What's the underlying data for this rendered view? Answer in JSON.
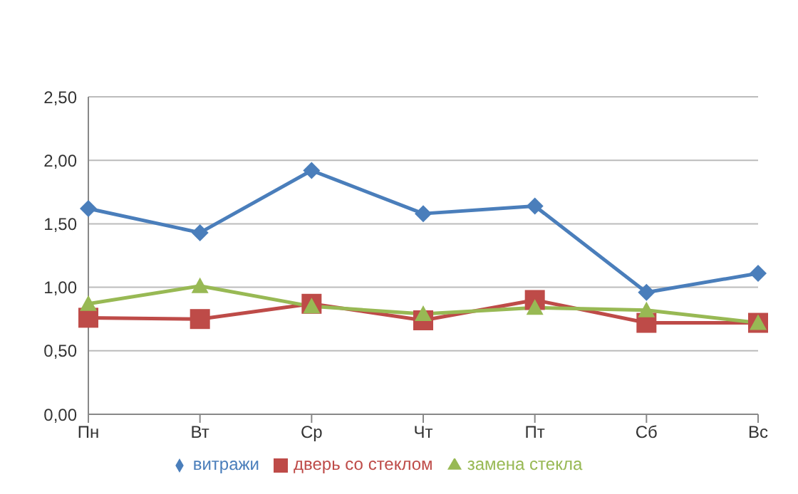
{
  "chart_data": {
    "type": "line",
    "categories": [
      "Пн",
      "Вт",
      "Ср",
      "Чт",
      "Пт",
      "Сб",
      "Вс"
    ],
    "series": [
      {
        "name": "витражи",
        "color": "#4a7ebb",
        "marker": "diamond",
        "values": [
          1.62,
          1.43,
          1.92,
          1.58,
          1.64,
          0.96,
          1.11
        ]
      },
      {
        "name": "дверь со стеклом",
        "color": "#be4b48",
        "marker": "square",
        "values": [
          0.76,
          0.75,
          0.87,
          0.74,
          0.9,
          0.72,
          0.72
        ]
      },
      {
        "name": "замена стекла",
        "color": "#98b954",
        "marker": "triangle",
        "values": [
          0.87,
          1.01,
          0.85,
          0.79,
          0.84,
          0.82,
          0.72
        ]
      }
    ],
    "ylim": [
      0,
      2.5
    ],
    "yticks": [
      {
        "value": 0,
        "label": "0,00"
      },
      {
        "value": 0.5,
        "label": "0,50"
      },
      {
        "value": 1,
        "label": "1,00"
      },
      {
        "value": 1.5,
        "label": "1,50"
      },
      {
        "value": 2,
        "label": "2,00"
      },
      {
        "value": 2.5,
        "label": "2,50"
      }
    ],
    "grid": "y",
    "legend": "bottom"
  }
}
